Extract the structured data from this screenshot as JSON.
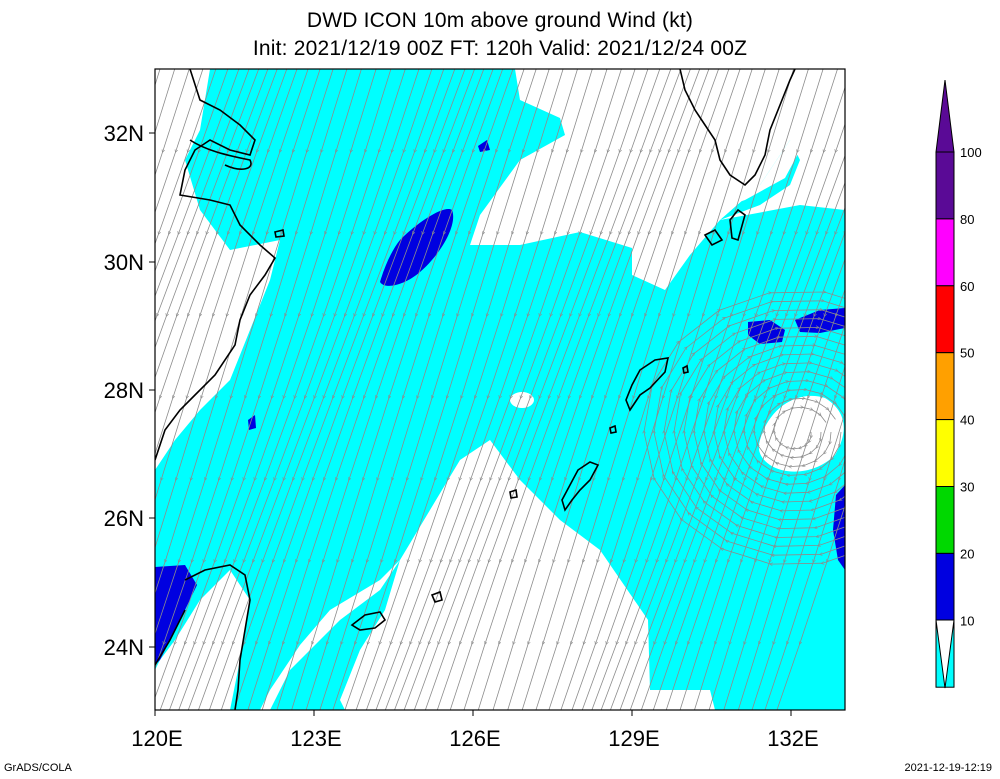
{
  "title": {
    "line1": "DWD ICON 10m above ground Wind (kt)",
    "line2": "Init: 2021/12/19 00Z  FT: 120h  Valid: 2021/12/24 00Z"
  },
  "axes": {
    "lon_ticks": [
      "120E",
      "123E",
      "126E",
      "129E",
      "132E"
    ],
    "lat_ticks": [
      "32N",
      "30N",
      "28N",
      "26N",
      "24N"
    ]
  },
  "legend": {
    "levels": [
      {
        "label": "100",
        "color": "#5a0a96"
      },
      {
        "label": "80",
        "color": "#ff00ff"
      },
      {
        "label": "60",
        "color": "#ff0000"
      },
      {
        "label": "50",
        "color": "#ffa000"
      },
      {
        "label": "40",
        "color": "#ffff00"
      },
      {
        "label": "30",
        "color": "#00d800"
      },
      {
        "label": "20",
        "color": "#0000e0"
      },
      {
        "label": "10",
        "color": "#00ffff"
      }
    ],
    "below_color": "#ffffff"
  },
  "colors": {
    "wind_10_20": "#00ffff",
    "wind_20_30": "#0000e0",
    "coastline": "#000000",
    "streamline": "#8c8c8c"
  },
  "footer": {
    "left": "GrADS/COLA",
    "right": "2021-12-19-12:19"
  }
}
